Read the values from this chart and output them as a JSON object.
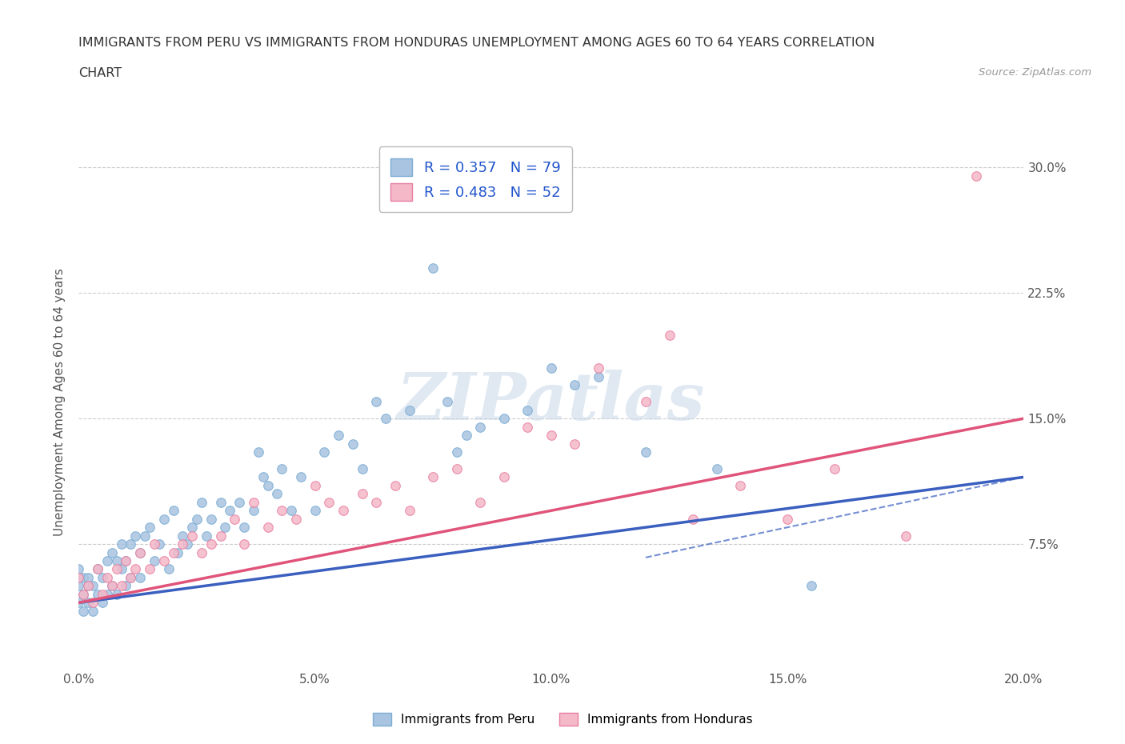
{
  "title_line1": "IMMIGRANTS FROM PERU VS IMMIGRANTS FROM HONDURAS UNEMPLOYMENT AMONG AGES 60 TO 64 YEARS CORRELATION",
  "title_line2": "CHART",
  "source_text": "Source: ZipAtlas.com",
  "ylabel": "Unemployment Among Ages 60 to 64 years",
  "xlim": [
    0.0,
    0.2
  ],
  "ylim": [
    0.0,
    0.32
  ],
  "xtick_vals": [
    0.0,
    0.05,
    0.1,
    0.15,
    0.2
  ],
  "xtick_labels": [
    "0.0%",
    "5.0%",
    "10.0%",
    "15.0%",
    "20.0%"
  ],
  "ytick_vals": [
    0.0,
    0.075,
    0.15,
    0.225,
    0.3
  ],
  "ytick_labels": [
    "",
    "7.5%",
    "15.0%",
    "22.5%",
    "30.0%"
  ],
  "peru_color": "#a8c4e0",
  "peru_edge": "#7badd4",
  "honduras_color": "#f4b8c8",
  "honduras_edge": "#e87fa0",
  "peru_line_color": "#3a5fbf",
  "honduras_line_color": "#e0547a",
  "R_peru": 0.357,
  "N_peru": 79,
  "R_honduras": 0.483,
  "N_honduras": 52,
  "legend_label_peru": "Immigrants from Peru",
  "legend_label_honduras": "Immigrants from Honduras",
  "watermark": "ZIPatlas",
  "peru_scatter_x": [
    0.0,
    0.0,
    0.0,
    0.001,
    0.001,
    0.001,
    0.002,
    0.002,
    0.002,
    0.003,
    0.003,
    0.004,
    0.004,
    0.005,
    0.005,
    0.006,
    0.006,
    0.007,
    0.007,
    0.008,
    0.008,
    0.009,
    0.009,
    0.01,
    0.01,
    0.011,
    0.011,
    0.012,
    0.013,
    0.013,
    0.014,
    0.015,
    0.016,
    0.017,
    0.018,
    0.019,
    0.02,
    0.021,
    0.022,
    0.023,
    0.024,
    0.025,
    0.026,
    0.027,
    0.028,
    0.03,
    0.031,
    0.032,
    0.034,
    0.035,
    0.037,
    0.038,
    0.039,
    0.04,
    0.042,
    0.043,
    0.045,
    0.047,
    0.05,
    0.052,
    0.055,
    0.058,
    0.06,
    0.063,
    0.065,
    0.07,
    0.075,
    0.078,
    0.08,
    0.082,
    0.085,
    0.09,
    0.095,
    0.1,
    0.105,
    0.11,
    0.12,
    0.135,
    0.155
  ],
  "peru_scatter_y": [
    0.05,
    0.04,
    0.06,
    0.045,
    0.055,
    0.035,
    0.05,
    0.04,
    0.055,
    0.05,
    0.035,
    0.06,
    0.045,
    0.055,
    0.04,
    0.065,
    0.045,
    0.07,
    0.05,
    0.065,
    0.045,
    0.06,
    0.075,
    0.065,
    0.05,
    0.075,
    0.055,
    0.08,
    0.07,
    0.055,
    0.08,
    0.085,
    0.065,
    0.075,
    0.09,
    0.06,
    0.095,
    0.07,
    0.08,
    0.075,
    0.085,
    0.09,
    0.1,
    0.08,
    0.09,
    0.1,
    0.085,
    0.095,
    0.1,
    0.085,
    0.095,
    0.13,
    0.115,
    0.11,
    0.105,
    0.12,
    0.095,
    0.115,
    0.095,
    0.13,
    0.14,
    0.135,
    0.12,
    0.16,
    0.15,
    0.155,
    0.24,
    0.16,
    0.13,
    0.14,
    0.145,
    0.15,
    0.155,
    0.18,
    0.17,
    0.175,
    0.13,
    0.12,
    0.05
  ],
  "honduras_scatter_x": [
    0.0,
    0.001,
    0.002,
    0.003,
    0.004,
    0.005,
    0.006,
    0.007,
    0.008,
    0.009,
    0.01,
    0.011,
    0.012,
    0.013,
    0.015,
    0.016,
    0.018,
    0.02,
    0.022,
    0.024,
    0.026,
    0.028,
    0.03,
    0.033,
    0.035,
    0.037,
    0.04,
    0.043,
    0.046,
    0.05,
    0.053,
    0.056,
    0.06,
    0.063,
    0.067,
    0.07,
    0.075,
    0.08,
    0.085,
    0.09,
    0.095,
    0.1,
    0.105,
    0.11,
    0.12,
    0.125,
    0.13,
    0.14,
    0.15,
    0.16,
    0.175,
    0.19
  ],
  "honduras_scatter_y": [
    0.055,
    0.045,
    0.05,
    0.04,
    0.06,
    0.045,
    0.055,
    0.05,
    0.06,
    0.05,
    0.065,
    0.055,
    0.06,
    0.07,
    0.06,
    0.075,
    0.065,
    0.07,
    0.075,
    0.08,
    0.07,
    0.075,
    0.08,
    0.09,
    0.075,
    0.1,
    0.085,
    0.095,
    0.09,
    0.11,
    0.1,
    0.095,
    0.105,
    0.1,
    0.11,
    0.095,
    0.115,
    0.12,
    0.1,
    0.115,
    0.145,
    0.14,
    0.135,
    0.18,
    0.16,
    0.2,
    0.09,
    0.11,
    0.09,
    0.12,
    0.08,
    0.295
  ],
  "peru_trendline": [
    0.0,
    0.2,
    0.04,
    0.115
  ],
  "honduras_trendline": [
    0.0,
    0.2,
    0.04,
    0.15
  ]
}
